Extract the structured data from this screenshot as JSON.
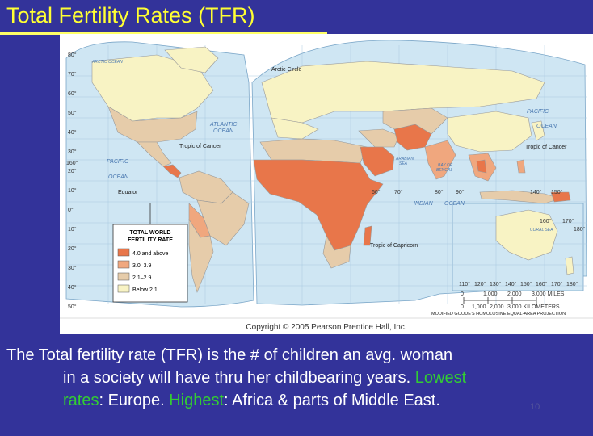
{
  "slide": {
    "title": "Total Fertility Rates (TFR)",
    "body": {
      "line1": "The Total fertility rate (TFR) is the # of children an avg. woman",
      "line2_a": "in a society will have thru her childbearing years. ",
      "line2_b": "Lowest",
      "line3_a": "rates",
      "line3_b": ":  Europe.    ",
      "line3_c": "Highest",
      "line3_d": ":  Africa & parts of Middle East."
    },
    "slide_number": "10",
    "colors": {
      "background": "#33339a",
      "title": "#ffff33",
      "highlight": "#33cc33",
      "text": "#ffffff"
    }
  },
  "map": {
    "legend": {
      "title_line1": "TOTAL WORLD",
      "title_line2": "FERTILITY RATE",
      "items": [
        {
          "label": "4.0 and above",
          "color": "#e8764a"
        },
        {
          "label": "3.0–3.9",
          "color": "#f0a77e"
        },
        {
          "label": "2.1–2.9",
          "color": "#e6ccaa"
        },
        {
          "label": "Below 2.1",
          "color": "#f8f3c4"
        }
      ]
    },
    "ocean_labels": {
      "atlantic": [
        "ATLANTIC",
        "OCEAN"
      ],
      "pacific_w": [
        "PACIFIC",
        "OCEAN"
      ],
      "pacific_e": [
        "PACIFIC",
        "OCEAN"
      ],
      "indian": [
        "INDIAN",
        "OCEAN"
      ],
      "arctic": "ARCTIC OCEAN",
      "arabian": [
        "ARABIAN",
        "SEA"
      ],
      "bengal": [
        "BAY OF",
        "BENGAL"
      ],
      "coral": "CORAL SEA"
    },
    "line_labels": {
      "arctic_circle": "Arctic Circle",
      "tropic_cancer": "Tropic of Cancer",
      "tropic_capricorn": "Tropic of Capricorn",
      "equator": "Equator"
    },
    "scale": {
      "miles": [
        "0",
        "1,000",
        "2,000",
        "3,000 MILES"
      ],
      "km": [
        "0",
        "1,000",
        "2,000",
        "3,000 KILOMETERS"
      ],
      "projection": "MODIFIED GOODE'S HOMOLOSINE EQUAL-AREA PROJECTION"
    },
    "copyright": "Copyright © 2005 Pearson Prentice Hall, Inc.",
    "lat_labels": [
      "80°",
      "70°",
      "60°",
      "50°",
      "40°",
      "30°",
      "20°",
      "10°",
      "0°",
      "10°",
      "20°",
      "30°",
      "40°",
      "50°"
    ],
    "lon_labels": [
      "160°",
      "60°",
      "70°",
      "80°",
      "90°",
      "140°",
      "150°",
      "160°",
      "170°",
      "180°"
    ],
    "lon_bottom_labels": [
      "110°",
      "120°",
      "130°",
      "140°",
      "150°",
      "160°",
      "170°",
      "180°"
    ]
  }
}
